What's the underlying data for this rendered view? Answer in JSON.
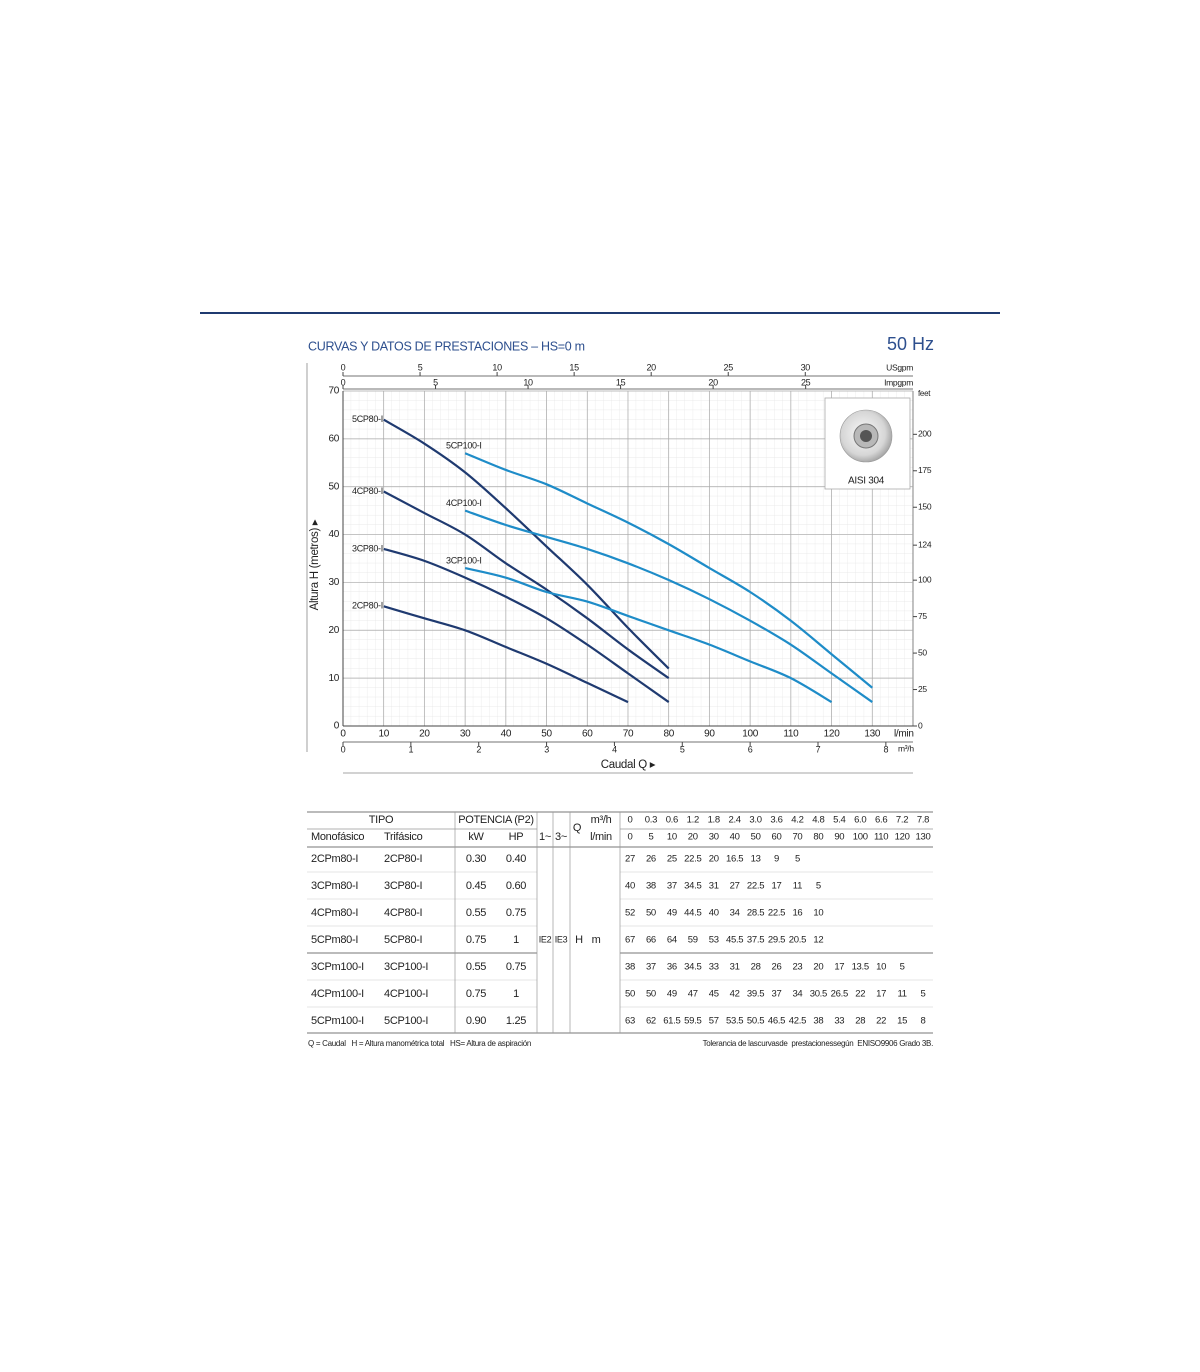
{
  "header": {
    "title": "CURVAS Y DATOS DE PRESTACIONES – HS=0 m",
    "frequency": "50 Hz"
  },
  "chart_data": {
    "type": "line",
    "xlabel": "Caudal Q ▸",
    "ylabel": "Altura H (metros) ▸",
    "xunit": "l/min",
    "xlim": [
      0,
      140
    ],
    "xticks": [
      0,
      10,
      20,
      30,
      40,
      50,
      60,
      70,
      80,
      90,
      100,
      110,
      120,
      130
    ],
    "ylim": [
      0,
      70
    ],
    "yticks": [
      0,
      10,
      20,
      30,
      40,
      50,
      60,
      70
    ],
    "y2label": "feet",
    "y2lim": [
      0,
      229.7
    ],
    "y2ticks": [
      0,
      25,
      50,
      75,
      100,
      124,
      150,
      175,
      200
    ],
    "x_m3h": {
      "label": "m³/h",
      "lim": [
        0,
        8.4
      ],
      "ticks": [
        0,
        1,
        2,
        3,
        4,
        5,
        6,
        7,
        8
      ]
    },
    "x_usgpm": {
      "label": "USgpm",
      "lim": [
        0,
        36.99
      ],
      "ticks": [
        0,
        5,
        10,
        15,
        20,
        25,
        30
      ]
    },
    "x_impgpm": {
      "label": "Impgpm",
      "lim": [
        0,
        30.8
      ],
      "ticks": [
        0,
        5,
        10,
        15,
        20,
        25
      ]
    },
    "grid": true,
    "image_caption": "AISI 304",
    "series": [
      {
        "name": "5CP80-I",
        "color": "#1f3a70",
        "x": [
          10,
          20,
          30,
          40,
          50,
          60,
          70,
          80
        ],
        "values": [
          64,
          59,
          53,
          45.5,
          37.5,
          29.5,
          20.5,
          12
        ]
      },
      {
        "name": "4CP80-I",
        "color": "#1f3a70",
        "x": [
          10,
          20,
          30,
          40,
          50,
          60,
          70,
          80
        ],
        "values": [
          49,
          44.5,
          40,
          34,
          28.5,
          22.5,
          16,
          10
        ]
      },
      {
        "name": "3CP80-I",
        "color": "#1f3a70",
        "x": [
          10,
          20,
          30,
          40,
          50,
          60,
          70,
          80
        ],
        "values": [
          37,
          34.5,
          31,
          27,
          22.5,
          17,
          11,
          5
        ]
      },
      {
        "name": "2CP80-I",
        "color": "#1f3a70",
        "x": [
          10,
          20,
          30,
          40,
          50,
          60,
          70
        ],
        "values": [
          25,
          22.5,
          20,
          16.5,
          13,
          9,
          5
        ]
      },
      {
        "name": "5CP100-I",
        "color": "#1e8cc8",
        "x": [
          30,
          40,
          50,
          60,
          70,
          80,
          90,
          100,
          110,
          120,
          130
        ],
        "values": [
          57,
          53.5,
          50.5,
          46.5,
          42.5,
          38,
          33,
          28,
          22,
          15,
          8
        ]
      },
      {
        "name": "4CP100-I",
        "color": "#1e8cc8",
        "x": [
          30,
          40,
          50,
          60,
          70,
          80,
          90,
          100,
          110,
          120,
          130
        ],
        "values": [
          45,
          42,
          39.5,
          37,
          34,
          30.5,
          26.5,
          22,
          17,
          11,
          5
        ]
      },
      {
        "name": "3CP100-I",
        "color": "#1e8cc8",
        "x": [
          30,
          40,
          50,
          60,
          70,
          80,
          90,
          100,
          110,
          120
        ],
        "values": [
          33,
          31,
          28,
          26,
          23,
          20,
          17,
          13.5,
          10,
          5
        ]
      }
    ]
  },
  "table": {
    "tipo": "TIPO",
    "potencia": "POTENCIA (P2)",
    "q": "Q",
    "q_m3h_unit": "m³/h",
    "q_lmin_unit": "l/min",
    "mono": "Monofásico",
    "tri": "Trifásico",
    "kw": "kW",
    "hp": "HP",
    "phase1": "1~",
    "phase3": "3~",
    "ie2": "IE2",
    "ie3": "IE3",
    "h": "H",
    "m": "m",
    "q_m3h": [
      "0",
      "0.3",
      "0.6",
      "1.2",
      "1.8",
      "2.4",
      "3.0",
      "3.6",
      "4.2",
      "4.8",
      "5.4",
      "6.0",
      "6.6",
      "7.2",
      "7.8"
    ],
    "q_lmin": [
      "0",
      "5",
      "10",
      "20",
      "30",
      "40",
      "50",
      "60",
      "70",
      "80",
      "90",
      "100",
      "110",
      "120",
      "130"
    ],
    "rows": [
      {
        "mono": "2CPm80-I",
        "tri": "2CP80-I",
        "kw": "0.30",
        "hp": "0.40",
        "heads": [
          "27",
          "26",
          "25",
          "22.5",
          "20",
          "16.5",
          "13",
          "9",
          "5"
        ]
      },
      {
        "mono": "3CPm80-I",
        "tri": "3CP80-I",
        "kw": "0.45",
        "hp": "0.60",
        "heads": [
          "40",
          "38",
          "37",
          "34.5",
          "31",
          "27",
          "22.5",
          "17",
          "11",
          "5"
        ]
      },
      {
        "mono": "4CPm80-I",
        "tri": "4CP80-I",
        "kw": "0.55",
        "hp": "0.75",
        "heads": [
          "52",
          "50",
          "49",
          "44.5",
          "40",
          "34",
          "28.5",
          "22.5",
          "16",
          "10"
        ]
      },
      {
        "mono": "5CPm80-I",
        "tri": "5CP80-I",
        "kw": "0.75",
        "hp": "1",
        "heads": [
          "67",
          "66",
          "64",
          "59",
          "53",
          "45.5",
          "37.5",
          "29.5",
          "20.5",
          "12"
        ]
      },
      {
        "mono": "3CPm100-I",
        "tri": "3CP100-I",
        "kw": "0.55",
        "hp": "0.75",
        "heads": [
          "38",
          "37",
          "36",
          "34.5",
          "33",
          "31",
          "28",
          "26",
          "23",
          "20",
          "17",
          "13.5",
          "10",
          "5"
        ]
      },
      {
        "mono": "4CPm100-I",
        "tri": "4CP100-I",
        "kw": "0.75",
        "hp": "1",
        "heads": [
          "50",
          "50",
          "49",
          "47",
          "45",
          "42",
          "39.5",
          "37",
          "34",
          "30.5",
          "26.5",
          "22",
          "17",
          "11",
          "5"
        ]
      },
      {
        "mono": "5CPm100-I",
        "tri": "5CP100-I",
        "kw": "0.90",
        "hp": "1.25",
        "heads": [
          "63",
          "62",
          "61.5",
          "59.5",
          "57",
          "53.5",
          "50.5",
          "46.5",
          "42.5",
          "38",
          "33",
          "28",
          "22",
          "15",
          "8"
        ]
      }
    ]
  },
  "footnotes": {
    "left": "Q = Caudal   H = Altura manométrica total   HS= Altura de aspiración",
    "right": "Tolerancia de lascurvasde  prestacionessegún  ENISO9906 Grado 3B."
  }
}
